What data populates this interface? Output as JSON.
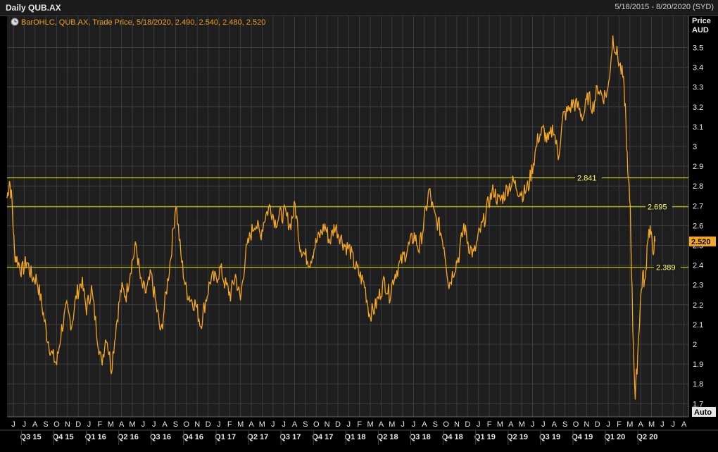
{
  "window": {
    "title": "Daily QUB.AX",
    "date_range": "5/18/2015 - 8/20/2020 (SYD)"
  },
  "legend": {
    "text": "BarOHLC, QUB.AX, Trade Price, 5/18/2020, 2.490, 2.540, 2.480, 2.520",
    "icon": "clock-icon"
  },
  "axis": {
    "unit_line1": "Price",
    "unit_line2": "AUD",
    "auto_label": "Auto"
  },
  "colors": {
    "background": "#1e1e1e",
    "grid": "#3c3c3c",
    "series": "#f5a623",
    "hline": "#e6e600",
    "last_price_bg": "#f5a623"
  },
  "chart_data": {
    "type": "line",
    "title": "Daily QUB.AX",
    "series": [
      {
        "name": "QUB.AX",
        "values": [
          [
            "2015-05-18",
            2.74
          ],
          [
            "2015-05-25",
            2.83
          ],
          [
            "2015-06-01",
            2.72
          ],
          [
            "2015-06-08",
            2.46
          ],
          [
            "2015-06-15",
            2.43
          ],
          [
            "2015-06-29",
            2.37
          ],
          [
            "2015-07-13",
            2.42
          ],
          [
            "2015-07-27",
            2.34
          ],
          [
            "2015-08-10",
            2.33
          ],
          [
            "2015-08-24",
            2.2
          ],
          [
            "2015-09-07",
            2.05
          ],
          [
            "2015-09-21",
            1.95
          ],
          [
            "2015-10-05",
            1.9
          ],
          [
            "2015-10-19",
            2.08
          ],
          [
            "2015-11-02",
            2.18
          ],
          [
            "2015-11-16",
            2.1
          ],
          [
            "2015-11-30",
            2.25
          ],
          [
            "2015-12-14",
            2.32
          ],
          [
            "2015-12-28",
            2.18
          ],
          [
            "2016-01-11",
            2.28
          ],
          [
            "2016-01-25",
            2.08
          ],
          [
            "2016-02-08",
            1.9
          ],
          [
            "2016-02-22",
            2.05
          ],
          [
            "2016-03-07",
            1.88
          ],
          [
            "2016-03-21",
            2.1
          ],
          [
            "2016-04-04",
            2.28
          ],
          [
            "2016-04-18",
            2.25
          ],
          [
            "2016-05-02",
            2.4
          ],
          [
            "2016-05-16",
            2.5
          ],
          [
            "2016-05-30",
            2.3
          ],
          [
            "2016-06-13",
            2.26
          ],
          [
            "2016-06-27",
            2.35
          ],
          [
            "2016-07-11",
            2.2
          ],
          [
            "2016-07-25",
            2.05
          ],
          [
            "2016-08-08",
            2.25
          ],
          [
            "2016-08-22",
            2.45
          ],
          [
            "2016-09-05",
            2.72
          ],
          [
            "2016-09-19",
            2.45
          ],
          [
            "2016-10-03",
            2.28
          ],
          [
            "2016-10-17",
            2.23
          ],
          [
            "2016-10-31",
            2.2
          ],
          [
            "2016-11-14",
            2.1
          ],
          [
            "2016-11-28",
            2.22
          ],
          [
            "2016-12-12",
            2.33
          ],
          [
            "2016-12-26",
            2.33
          ],
          [
            "2017-01-09",
            2.38
          ],
          [
            "2017-01-23",
            2.3
          ],
          [
            "2017-02-06",
            2.25
          ],
          [
            "2017-02-20",
            2.35
          ],
          [
            "2017-03-06",
            2.22
          ],
          [
            "2017-03-20",
            2.45
          ],
          [
            "2017-04-03",
            2.55
          ],
          [
            "2017-04-17",
            2.62
          ],
          [
            "2017-05-01",
            2.55
          ],
          [
            "2017-05-15",
            2.65
          ],
          [
            "2017-05-29",
            2.7
          ],
          [
            "2017-06-12",
            2.62
          ],
          [
            "2017-06-26",
            2.65
          ],
          [
            "2017-07-10",
            2.66
          ],
          [
            "2017-07-24",
            2.6
          ],
          [
            "2017-08-07",
            2.7
          ],
          [
            "2017-08-21",
            2.5
          ],
          [
            "2017-09-04",
            2.45
          ],
          [
            "2017-09-18",
            2.42
          ],
          [
            "2017-10-02",
            2.5
          ],
          [
            "2017-10-16",
            2.55
          ],
          [
            "2017-10-30",
            2.6
          ],
          [
            "2017-11-13",
            2.52
          ],
          [
            "2017-11-27",
            2.6
          ],
          [
            "2017-12-11",
            2.55
          ],
          [
            "2017-12-25",
            2.5
          ],
          [
            "2018-01-08",
            2.48
          ],
          [
            "2018-01-22",
            2.4
          ],
          [
            "2018-02-05",
            2.35
          ],
          [
            "2018-02-19",
            2.3
          ],
          [
            "2018-03-05",
            2.15
          ],
          [
            "2018-03-19",
            2.18
          ],
          [
            "2018-04-02",
            2.25
          ],
          [
            "2018-04-16",
            2.32
          ],
          [
            "2018-04-30",
            2.25
          ],
          [
            "2018-05-14",
            2.35
          ],
          [
            "2018-05-28",
            2.4
          ],
          [
            "2018-06-11",
            2.45
          ],
          [
            "2018-06-25",
            2.5
          ],
          [
            "2018-07-09",
            2.55
          ],
          [
            "2018-07-23",
            2.48
          ],
          [
            "2018-08-06",
            2.62
          ],
          [
            "2018-08-20",
            2.78
          ],
          [
            "2018-09-03",
            2.65
          ],
          [
            "2018-09-17",
            2.6
          ],
          [
            "2018-10-01",
            2.5
          ],
          [
            "2018-10-15",
            2.3
          ],
          [
            "2018-10-29",
            2.38
          ],
          [
            "2018-11-12",
            2.45
          ],
          [
            "2018-11-26",
            2.6
          ],
          [
            "2018-12-10",
            2.5
          ],
          [
            "2018-12-24",
            2.45
          ],
          [
            "2019-01-07",
            2.55
          ],
          [
            "2019-01-21",
            2.62
          ],
          [
            "2019-02-04",
            2.72
          ],
          [
            "2019-02-18",
            2.78
          ],
          [
            "2019-03-04",
            2.72
          ],
          [
            "2019-03-18",
            2.75
          ],
          [
            "2019-04-01",
            2.8
          ],
          [
            "2019-04-15",
            2.82
          ],
          [
            "2019-04-29",
            2.78
          ],
          [
            "2019-05-13",
            2.76
          ],
          [
            "2019-05-27",
            2.8
          ],
          [
            "2019-06-10",
            2.92
          ],
          [
            "2019-06-24",
            3.05
          ],
          [
            "2019-07-08",
            3.08
          ],
          [
            "2019-07-22",
            3.02
          ],
          [
            "2019-08-05",
            3.1
          ],
          [
            "2019-08-19",
            2.95
          ],
          [
            "2019-09-02",
            3.15
          ],
          [
            "2019-09-16",
            3.18
          ],
          [
            "2019-09-30",
            3.22
          ],
          [
            "2019-10-14",
            3.2
          ],
          [
            "2019-10-28",
            3.15
          ],
          [
            "2019-11-11",
            3.25
          ],
          [
            "2019-11-25",
            3.2
          ],
          [
            "2019-12-09",
            3.3
          ],
          [
            "2019-12-23",
            3.25
          ],
          [
            "2020-01-06",
            3.28
          ],
          [
            "2020-01-20",
            3.55
          ],
          [
            "2020-02-03",
            3.45
          ],
          [
            "2020-02-17",
            3.35
          ],
          [
            "2020-02-24",
            3.2
          ],
          [
            "2020-03-02",
            2.85
          ],
          [
            "2020-03-09",
            2.7
          ],
          [
            "2020-03-16",
            2.1
          ],
          [
            "2020-03-23",
            1.72
          ],
          [
            "2020-03-30",
            1.95
          ],
          [
            "2020-04-06",
            2.2
          ],
          [
            "2020-04-13",
            2.35
          ],
          [
            "2020-04-20",
            2.3
          ],
          [
            "2020-04-27",
            2.55
          ],
          [
            "2020-05-04",
            2.58
          ],
          [
            "2020-05-11",
            2.48
          ],
          [
            "2020-05-18",
            2.52
          ]
        ]
      }
    ],
    "horizontal_lines": [
      {
        "value": 2.841,
        "label": "2.841"
      },
      {
        "value": 2.695,
        "label": "2.695"
      },
      {
        "value": 2.389,
        "label": "2.389"
      }
    ],
    "last_price": {
      "value": 2.52,
      "label": "2.520"
    },
    "yticks": [
      "3.5",
      "3.4",
      "3.3",
      "3.2",
      "3.1",
      "3",
      "2.9",
      "2.8",
      "2.7",
      "2.6",
      "2.5",
      "2.4",
      "2.3",
      "2.2",
      "2.1",
      "2",
      "1.9",
      "1.8",
      "1.7"
    ],
    "ylim": [
      1.65,
      3.6
    ],
    "xlim": [
      "2015-05-18",
      "2020-08-20"
    ],
    "month_labels": [
      "J",
      "J",
      "A",
      "S",
      "O",
      "N",
      "D",
      "J",
      "F",
      "M",
      "A",
      "M",
      "J",
      "J",
      "A",
      "S",
      "O",
      "N",
      "D",
      "J",
      "F",
      "M",
      "A",
      "M",
      "J",
      "J",
      "A",
      "S",
      "O",
      "N",
      "D",
      "J",
      "F",
      "M",
      "A",
      "M",
      "J",
      "J",
      "A",
      "S",
      "O",
      "N",
      "D",
      "J",
      "F",
      "M",
      "A",
      "M",
      "J",
      "J",
      "A",
      "S",
      "O",
      "N",
      "D",
      "J",
      "F",
      "M",
      "A",
      "M",
      "J",
      "J",
      "A"
    ],
    "quarter_labels": [
      "Q3 15",
      "Q4 15",
      "Q1 16",
      "Q2 16",
      "Q3 16",
      "Q4 16",
      "Q1 17",
      "Q2 17",
      "Q3 17",
      "Q4 17",
      "Q1 18",
      "Q2 18",
      "Q3 18",
      "Q4 18",
      "Q1 19",
      "Q2 19",
      "Q3 19",
      "Q4 19",
      "Q1 20",
      "Q2 20"
    ],
    "grid": true
  }
}
